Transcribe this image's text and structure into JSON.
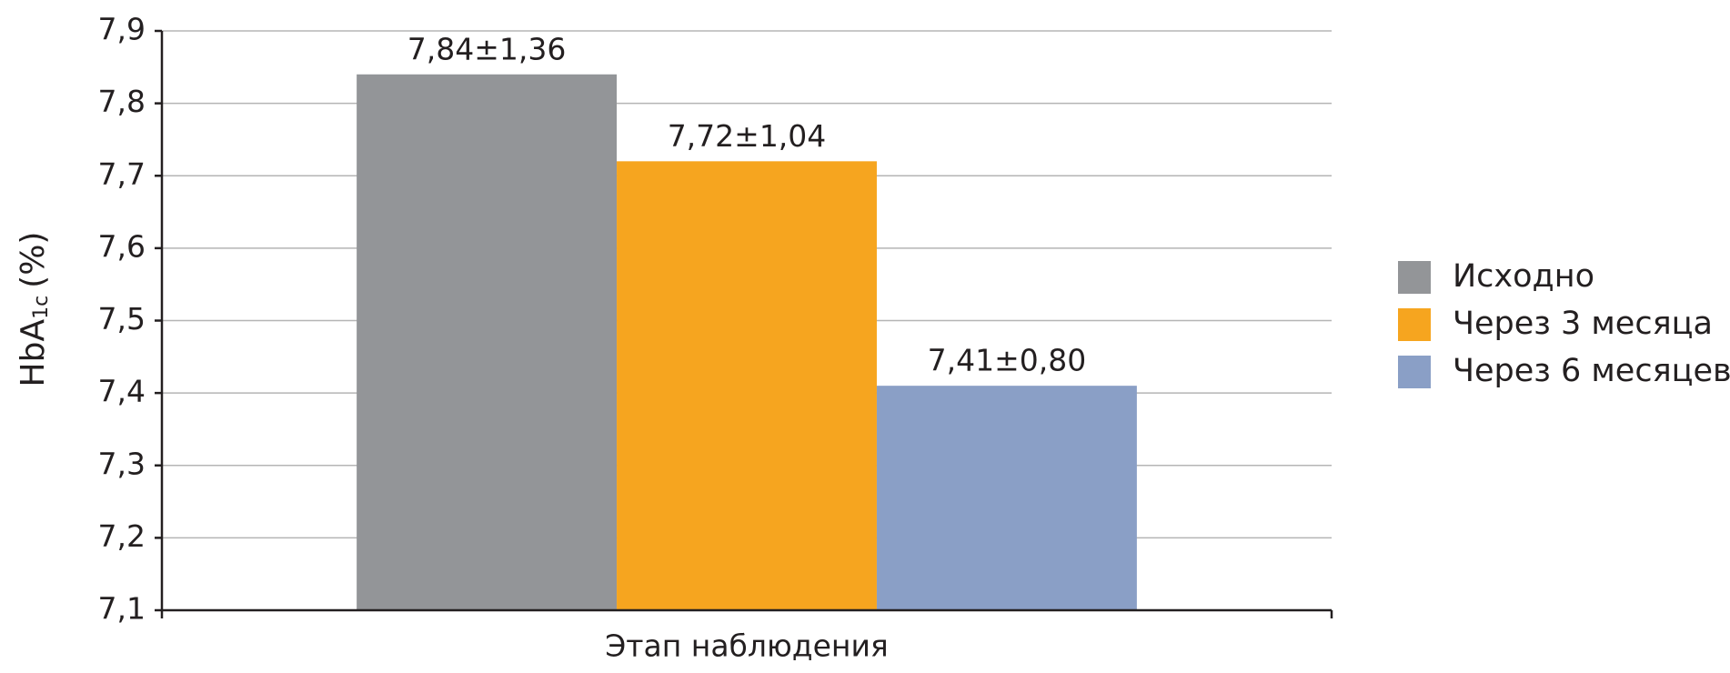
{
  "chart_data": {
    "type": "bar",
    "categories": [
      "Этап наблюдения"
    ],
    "y_label": {
      "main": "HbA",
      "sub": "1c",
      "suffix": "(%)"
    },
    "series": [
      {
        "name": "Исходно",
        "color": "#939598",
        "values": [
          7.84
        ],
        "value_labels": [
          "7,84±1,36"
        ]
      },
      {
        "name": "Через 3 месяца",
        "color": "#f6a51f",
        "values": [
          7.72
        ],
        "value_labels": [
          "7,72±1,04"
        ]
      },
      {
        "name": "Через 6 месяцев",
        "color": "#8a9fc6",
        "values": [
          7.41
        ],
        "value_labels": [
          "7,41±0,80"
        ]
      }
    ],
    "ylim": [
      7.1,
      7.9
    ],
    "yticks": [
      {
        "value": 7.1,
        "label": "7,1"
      },
      {
        "value": 7.2,
        "label": "7,2"
      },
      {
        "value": 7.3,
        "label": "7,3"
      },
      {
        "value": 7.4,
        "label": "7,4"
      },
      {
        "value": 7.5,
        "label": "7,5"
      },
      {
        "value": 7.6,
        "label": "7,6"
      },
      {
        "value": 7.7,
        "label": "7,7"
      },
      {
        "value": 7.8,
        "label": "7,8"
      },
      {
        "value": 7.9,
        "label": "7,9"
      }
    ],
    "grid": true,
    "legend": "right"
  }
}
